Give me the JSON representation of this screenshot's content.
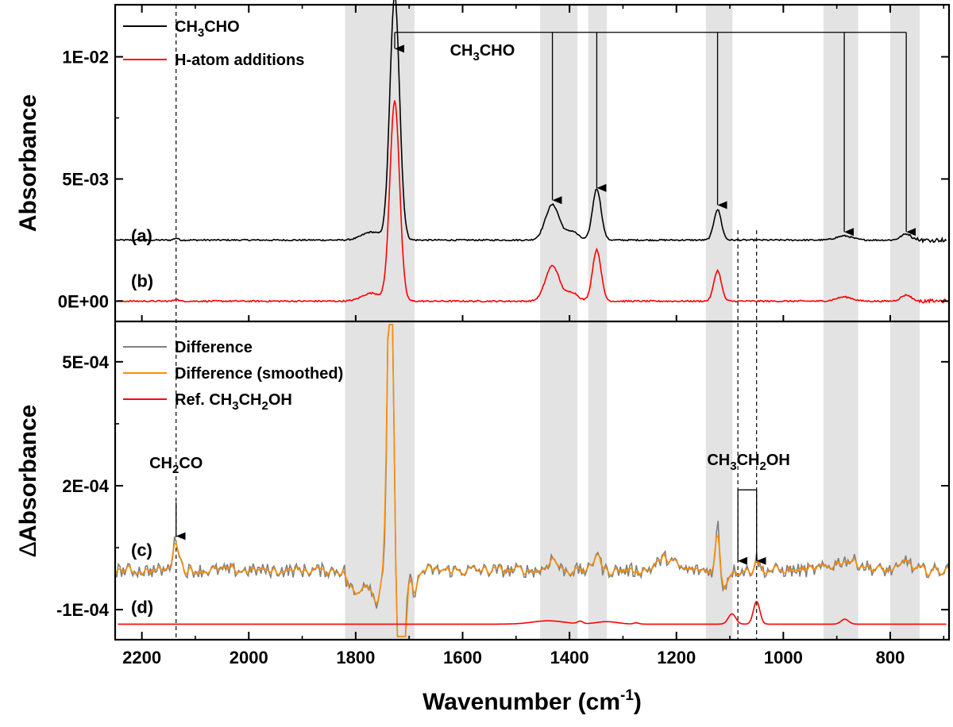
{
  "chart_data": {
    "type": "line",
    "xlabel": "Wavenumber (cm",
    "xlabel_sup": "-1",
    "xlabel_close": ")",
    "xlim": [
      2250,
      690
    ],
    "x_ticks": [
      2200,
      2000,
      1800,
      1600,
      1400,
      1200,
      1000,
      800
    ],
    "shaded_regions": [
      [
        1820,
        1690
      ],
      [
        1455,
        1385
      ],
      [
        1365,
        1330
      ],
      [
        1145,
        1095
      ],
      [
        925,
        860
      ],
      [
        800,
        745
      ]
    ],
    "dashed_lines": [
      2136,
      1085,
      1050
    ],
    "top_panel": {
      "ylabel": "Absorbance",
      "ylim": [
        -0.0007,
        0.012
      ],
      "y_ticks": [
        {
          "value": 0.0,
          "label": "0E+00"
        },
        {
          "value": 0.005,
          "label": "5E-03"
        },
        {
          "value": 0.01,
          "label": "1E-02"
        }
      ],
      "baseline_offset_a": 0.0025,
      "series": [
        {
          "name": "CH3CHO",
          "legend": [
            "CH",
            "3",
            "CHO"
          ],
          "color": "#000000",
          "label": "(a)",
          "peaks": [
            [
              1770,
              0.00033,
              18
            ],
            [
              1727,
              0.01,
              9
            ],
            [
              1432,
              0.00145,
              13
            ],
            [
              1395,
              0.00035,
              11
            ],
            [
              1349,
              0.0021,
              8
            ],
            [
              1123,
              0.00125,
              7
            ],
            [
              886,
              0.00017,
              15
            ],
            [
              770,
              0.00025,
              10
            ]
          ]
        },
        {
          "name": "H-atom additions",
          "legend": [
            "H-atom additions"
          ],
          "color": "#ff0000",
          "label": "(b)",
          "peaks": [
            [
              1770,
              0.00033,
              18
            ],
            [
              1727,
              0.0082,
              9
            ],
            [
              1432,
              0.00145,
              13
            ],
            [
              1395,
              0.00035,
              11
            ],
            [
              1349,
              0.0021,
              8
            ],
            [
              1123,
              0.00125,
              7
            ],
            [
              886,
              0.00017,
              15
            ],
            [
              770,
              0.00025,
              10
            ]
          ]
        }
      ],
      "annotation": {
        "parts": [
          "CH",
          "3",
          "CHO"
        ],
        "x": 1560,
        "arrow_targets": [
          [
            1727,
            0.0103
          ],
          [
            1432,
            0.0041
          ],
          [
            1349,
            0.0046
          ],
          [
            1123,
            0.0039
          ],
          [
            886,
            0.0028
          ],
          [
            770,
            0.0028
          ]
        ],
        "bracket_y": 0.011
      }
    },
    "bottom_panel": {
      "ylabel_delta": "∆",
      "ylabel": "Absorbance",
      "ylim": [
        -0.000165,
        0.00059
      ],
      "y_ticks": [
        {
          "value": -0.0001,
          "label": "-1E-04"
        },
        {
          "value": 0.0002,
          "label": "2E-04"
        },
        {
          "value": 0.0005,
          "label": "5E-04"
        }
      ],
      "difference_baseline": -5e-06,
      "series": [
        {
          "name": "Difference",
          "legend": [
            "Difference"
          ],
          "color": "#808080",
          "label": "(c)"
        },
        {
          "name": "Difference (smoothed)",
          "legend": [
            "Difference (smoothed)"
          ],
          "color": "#ff8c00"
        },
        {
          "name": "Ref. CH3CH2OH",
          "legend": [
            "Ref. CH",
            "3",
            "CH",
            "2",
            "OH"
          ],
          "color": "#ff0000",
          "label": "(d)",
          "baseline": -0.000135,
          "peaks": [
            [
              1096,
              2.5e-05,
              7
            ],
            [
              1050,
              5.5e-05,
              6
            ],
            [
              885,
              1.2e-05,
              7
            ],
            [
              1440,
              8e-06,
              30
            ],
            [
              1380,
              6e-06,
              5
            ],
            [
              1330,
              6e-06,
              20
            ],
            [
              1275,
              3e-06,
              5
            ]
          ]
        }
      ],
      "annotations": [
        {
          "parts": [
            "CH",
            "2",
            "CO"
          ],
          "x": 2136,
          "arrow_from": 0.00016,
          "arrow_to": 7.8e-05
        },
        {
          "parts": [
            "CH",
            "3",
            "CH",
            "2",
            "OH"
          ],
          "x": 1065,
          "bracket": [
            1085,
            1050
          ],
          "bracket_y": 0.00019,
          "arrow_to": 1.8e-05
        }
      ]
    }
  }
}
